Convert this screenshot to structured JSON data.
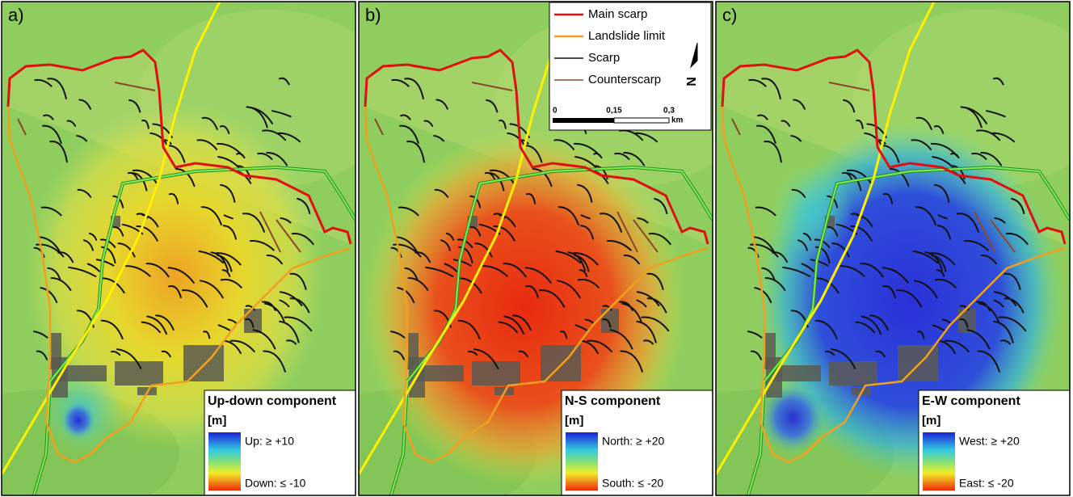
{
  "panels": [
    {
      "label": "a)",
      "legend": {
        "title": "Up-down component",
        "unit": "[m]",
        "max": "Up: ≥ +10",
        "min": "Down: ≤ -10"
      }
    },
    {
      "label": "b)",
      "legend": {
        "title": "N-S component",
        "unit": "[m]",
        "max": "North: ≥ +20",
        "min": "South: ≤ -20"
      }
    },
    {
      "label": "c)",
      "legend": {
        "title": "E-W component",
        "unit": "[m]",
        "max": "West: ≥ +20",
        "min": "East: ≤ -20"
      }
    }
  ],
  "map_legend": {
    "items": [
      "Main scarp",
      "Landslide limit",
      "Scarp",
      "Counterscarp"
    ],
    "scale": {
      "ticks": [
        "0",
        "0,15",
        "0,3"
      ],
      "unit": "km"
    },
    "north": "N"
  }
}
